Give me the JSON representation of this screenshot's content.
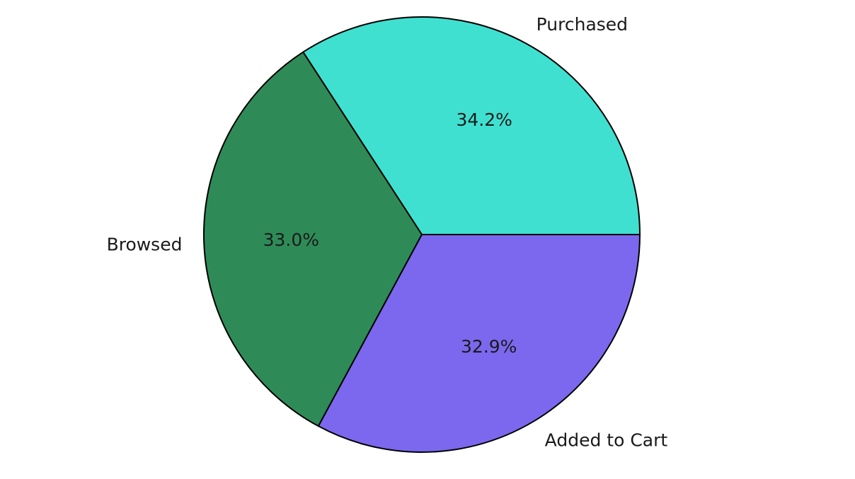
{
  "chart_data": {
    "type": "pie",
    "title": "",
    "start_angle_deg": 0,
    "direction": "counterclockwise",
    "slices": [
      {
        "label": "Purchased",
        "percent_label": "34.2%",
        "value": 34.2,
        "color": "#40E0D0"
      },
      {
        "label": "Browsed",
        "percent_label": "33.0%",
        "value": 33.0,
        "color": "#2E8B57"
      },
      {
        "label": "Added to Cart",
        "percent_label": "32.9%",
        "value": 32.9,
        "color": "#7B68EE"
      }
    ],
    "edge_color": "#000000"
  }
}
